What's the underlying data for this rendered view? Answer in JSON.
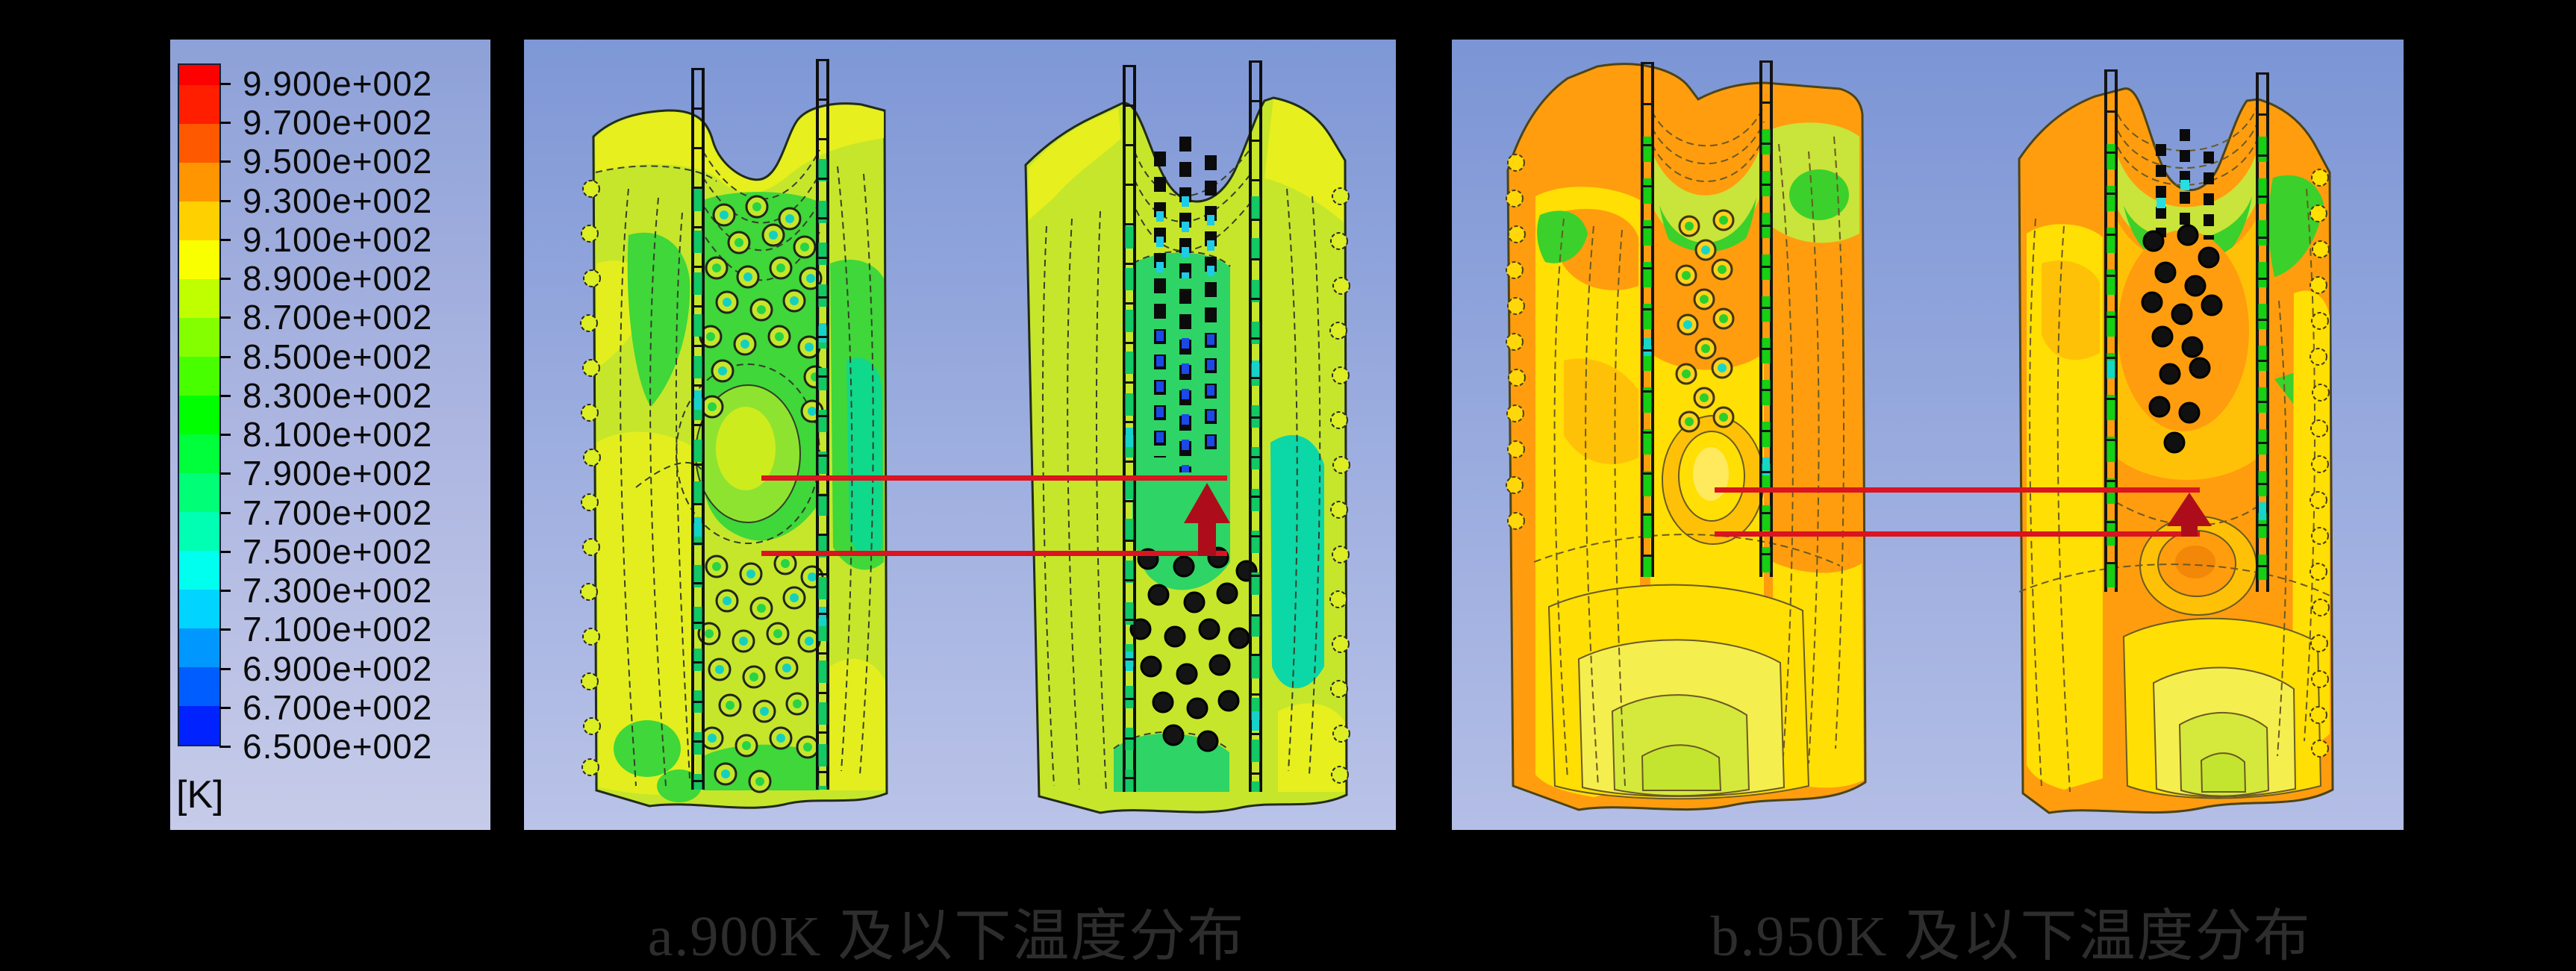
{
  "figure": {
    "background": "#000000",
    "description": "CFD temperature contour comparison figure with shared colorbar legend"
  },
  "legend": {
    "unit": "[K]",
    "tick_labels": [
      "9.900e+002",
      "9.700e+002",
      "9.500e+002",
      "9.300e+002",
      "9.100e+002",
      "8.900e+002",
      "8.700e+002",
      "8.500e+002",
      "8.300e+002",
      "8.100e+002",
      "7.900e+002",
      "7.700e+002",
      "7.500e+002",
      "7.300e+002",
      "7.100e+002",
      "6.900e+002",
      "6.700e+002",
      "6.500e+002"
    ],
    "values_kelvin": [
      990,
      970,
      950,
      930,
      910,
      890,
      870,
      850,
      830,
      810,
      790,
      770,
      750,
      730,
      710,
      690,
      670,
      650
    ],
    "cap_color": "#ff0000",
    "band_colors": [
      "#ff1e00",
      "#ff5900",
      "#ff9500",
      "#ffd000",
      "#faff00",
      "#bfff00",
      "#84ff00",
      "#48ff00",
      "#00ff00",
      "#00ff3b",
      "#00ff77",
      "#00ffb2",
      "#00ffee",
      "#00d4ff",
      "#0098ff",
      "#005dff",
      "#0022ff"
    ],
    "background_top": "#8da1d8",
    "background_bottom": "#c6cbe9",
    "text_color": "#0a0a0a"
  },
  "panels": [
    {
      "id": "a",
      "caption": "a.900K 及以下温度分布"
    },
    {
      "id": "b",
      "caption": "b.950K 及以下温度分布"
    }
  ],
  "annotation": {
    "line_color": "#da1420",
    "arrow_color": "#ad0d1b",
    "caption_color": "#2d2d2d"
  },
  "chart_data": [
    {
      "type": "heatmap",
      "subtype": "filled-contour CFD temperature field, two vertical slab sections",
      "title": "a.900K 及以下温度分布",
      "unit": "[K]",
      "scale_ticks": [
        990,
        970,
        950,
        930,
        910,
        890,
        870,
        850,
        830,
        810,
        790,
        770,
        750,
        730,
        710,
        690,
        670,
        650
      ],
      "scale_range": [
        650,
        990
      ],
      "palette": "rainbow, red = high (990 K) to blue = low (650 K)",
      "dominant_levels_kelvin": [
        850,
        870,
        890
      ],
      "notable_features": [
        "yellow-green slabs with green cores",
        "blue/cyan cold tube columns at top of right slab",
        "tube-hole circles with cyan/green centers",
        "two horizontal red reference lines",
        "red upward arrow on right slab between the lines"
      ]
    },
    {
      "type": "heatmap",
      "subtype": "filled-contour CFD temperature field, two vertical slab sections",
      "title": "b.950K 及以下温度分布",
      "unit": "[K]",
      "scale_ticks": [
        990,
        970,
        950,
        930,
        910,
        890,
        870,
        850,
        830,
        810,
        790,
        770,
        750,
        730,
        710,
        690,
        670,
        650
      ],
      "scale_range": [
        650,
        990
      ],
      "palette": "rainbow, red = high (990 K) to blue = low (650 K)",
      "dominant_levels_kelvin": [
        910,
        930,
        950
      ],
      "notable_features": [
        "orange/yellow slabs with green tube rails",
        "black tube-hole circles at top of right slab",
        "yellow-green cool core at bottom center",
        "two horizontal red reference lines",
        "red upward arrow on right slab between the lines"
      ]
    }
  ]
}
